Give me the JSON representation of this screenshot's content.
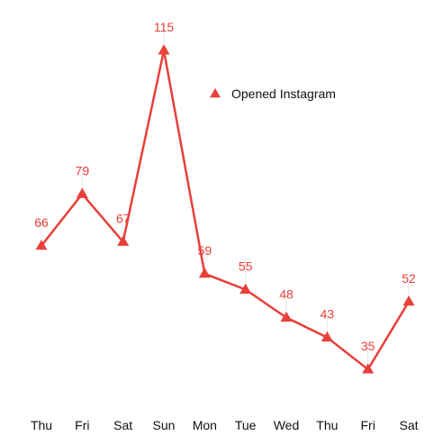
{
  "chart_data": {
    "type": "line",
    "categories": [
      "Thu",
      "Fri",
      "Sat",
      "Sun",
      "Mon",
      "Tue",
      "Wed",
      "Thu",
      "Fri",
      "Sat"
    ],
    "series": [
      {
        "name": "Opened Instagram",
        "values": [
          66,
          79,
          67,
          115,
          59,
          55,
          48,
          43,
          35,
          52
        ],
        "color": "#e8403a",
        "marker": "triangle"
      }
    ],
    "title": "",
    "xlabel": "",
    "ylabel": "",
    "ylim": [
      22,
      125
    ],
    "grid": false,
    "legend": "top-right",
    "data_labels": [
      "66",
      "79",
      "67",
      "115",
      "59",
      "55",
      "48",
      "43",
      "35",
      "52"
    ]
  }
}
